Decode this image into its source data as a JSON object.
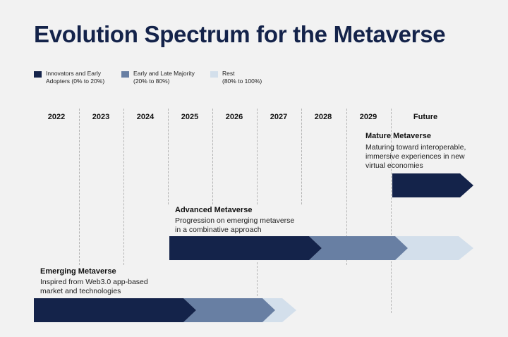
{
  "title": "Evolution Spectrum for the Metaverse",
  "legend": [
    {
      "label": "Innovators and Early\nAdopters (0% to 20%)",
      "color": "#14234a"
    },
    {
      "label": "Early and Late Majority\n(20% to 80%)",
      "color": "#687fa3"
    },
    {
      "label": "Rest\n(80% to 100%)",
      "color": "#d3dfeb"
    }
  ],
  "years": [
    "2022",
    "2023",
    "2024",
    "2025",
    "2026",
    "2027",
    "2028",
    "2029",
    "Future"
  ],
  "phases": [
    {
      "name": "Mature Metaverse",
      "description": "Maturing toward interoperable,\nimmersive experiences in new\nvirtual economies"
    },
    {
      "name": "Advanced Metaverse",
      "description": "Progression on emerging metaverse\nin a combinative approach"
    },
    {
      "name": "Emerging Metaverse",
      "description": "Inspired from Web3.0 app-based\nmarket and technologies"
    }
  ]
}
